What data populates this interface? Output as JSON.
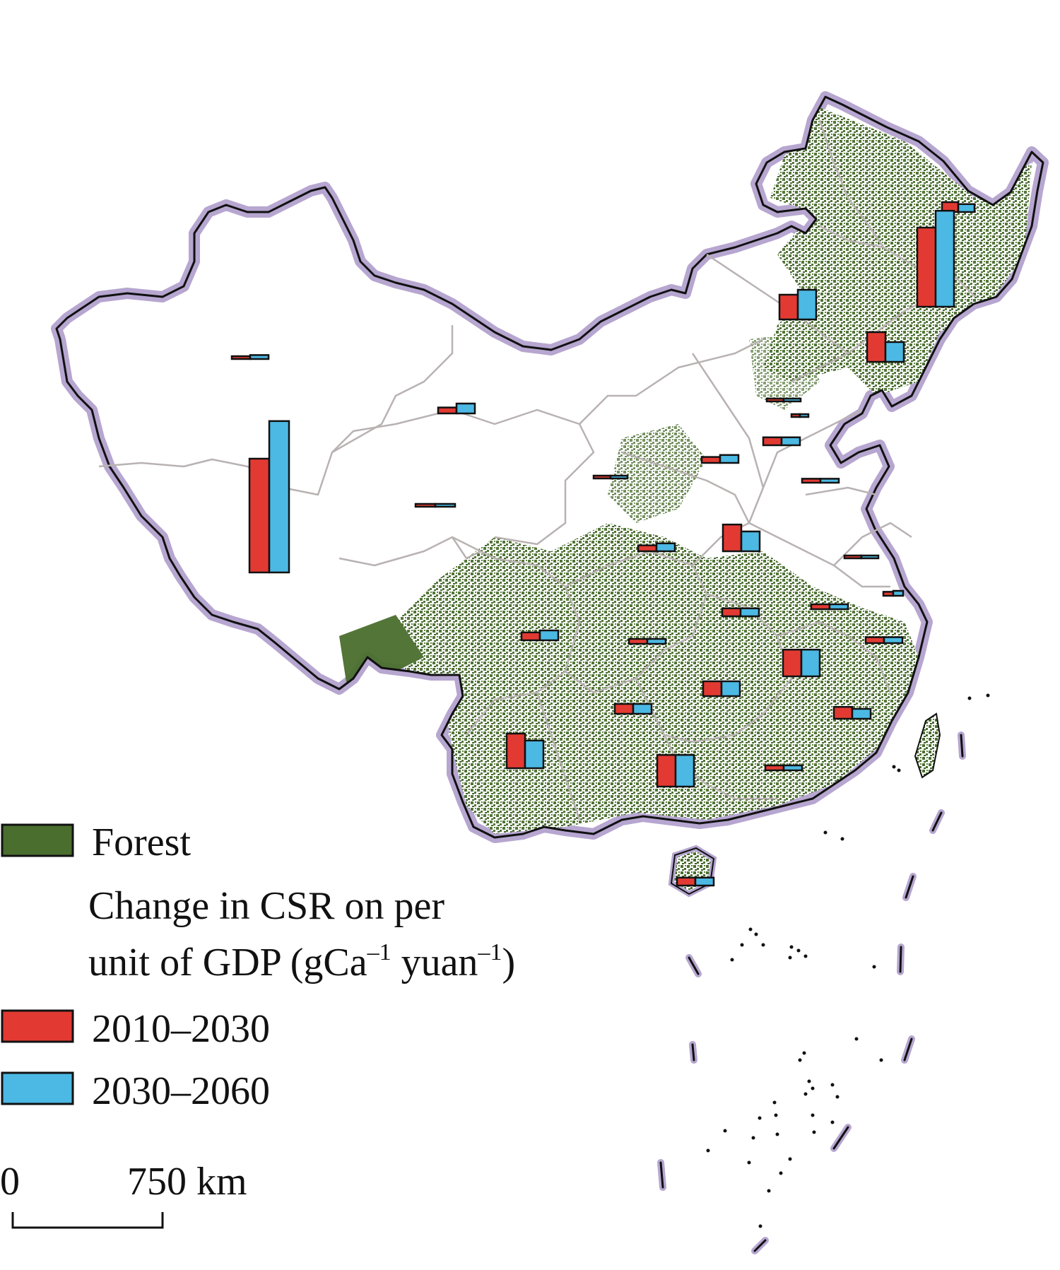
{
  "legend": {
    "forest_label": "Forest",
    "title_line1": "Change in CSR on per",
    "title_line2_prefix": "unit of GDP (gCa",
    "title_line2_sup1": "–1",
    "title_line2_mid": " yuan",
    "title_line2_sup2": "–1",
    "title_line2_suffix": ")",
    "period1_label": "2010–2030",
    "period2_label": "2030–2060"
  },
  "scale_bar": {
    "zero_label": "0",
    "end_label": "750 km"
  },
  "colors": {
    "forest": "#4a6e2e",
    "period1": "#e23a32",
    "period2": "#4bb9e3",
    "border_glow": "#b6a6d0",
    "province_lines": "#b9b2b2",
    "outline": "#111111"
  },
  "chart_data": {
    "type": "bar",
    "title": "",
    "series": [
      {
        "name": "2010–2030"
      },
      {
        "name": "2030–2060"
      }
    ],
    "note": "Relative bar heights (no numeric axis printed); each entry is one province-level bar pair",
    "provinces": [
      {
        "id": "heilongjiang-north",
        "values": [
          0.1,
          0.08
        ]
      },
      {
        "id": "heilongjiang",
        "values": [
          0.8,
          0.97
        ]
      },
      {
        "id": "inner-mongolia-east",
        "values": [
          0.25,
          0.3
        ]
      },
      {
        "id": "jilin",
        "values": [
          0.3,
          0.2
        ]
      },
      {
        "id": "liaoning-beijing",
        "values": [
          0.02,
          0.02
        ]
      },
      {
        "id": "tianjin",
        "values": [
          0.02,
          0.02
        ]
      },
      {
        "id": "hebei",
        "values": [
          0.08,
          0.08
        ]
      },
      {
        "id": "shanxi",
        "values": [
          0.06,
          0.08
        ]
      },
      {
        "id": "shandong",
        "values": [
          0.04,
          0.04
        ]
      },
      {
        "id": "xinjiang-north",
        "values": [
          0.02,
          0.04
        ]
      },
      {
        "id": "xinjiang",
        "values": [
          1.15,
          1.53
        ]
      },
      {
        "id": "gansu",
        "values": [
          0.06,
          0.1
        ]
      },
      {
        "id": "ningxia",
        "values": [
          0.02,
          0.02
        ]
      },
      {
        "id": "qinghai",
        "values": [
          0.02,
          0.02
        ]
      },
      {
        "id": "shaanxi",
        "values": [
          0.06,
          0.08
        ]
      },
      {
        "id": "henan",
        "values": [
          0.27,
          0.2
        ]
      },
      {
        "id": "jiangsu",
        "values": [
          0.02,
          0.02
        ]
      },
      {
        "id": "shanghai",
        "values": [
          0.04,
          0.05
        ]
      },
      {
        "id": "hubei",
        "values": [
          0.08,
          0.08
        ]
      },
      {
        "id": "anhui",
        "values": [
          0.05,
          0.05
        ]
      },
      {
        "id": "zhejiang",
        "values": [
          0.06,
          0.06
        ]
      },
      {
        "id": "sichuan",
        "values": [
          0.08,
          0.1
        ]
      },
      {
        "id": "chongqing",
        "values": [
          0.05,
          0.05
        ]
      },
      {
        "id": "jiangxi",
        "values": [
          0.27,
          0.27
        ]
      },
      {
        "id": "hunan",
        "values": [
          0.15,
          0.15
        ]
      },
      {
        "id": "guizhou",
        "values": [
          0.1,
          0.1
        ]
      },
      {
        "id": "fujian",
        "values": [
          0.12,
          0.1
        ]
      },
      {
        "id": "yunnan",
        "values": [
          0.35,
          0.28
        ]
      },
      {
        "id": "guangxi",
        "values": [
          0.32,
          0.32
        ]
      },
      {
        "id": "guangdong",
        "values": [
          0.05,
          0.05
        ]
      },
      {
        "id": "hainan",
        "values": [
          0.08,
          0.08
        ]
      }
    ]
  }
}
